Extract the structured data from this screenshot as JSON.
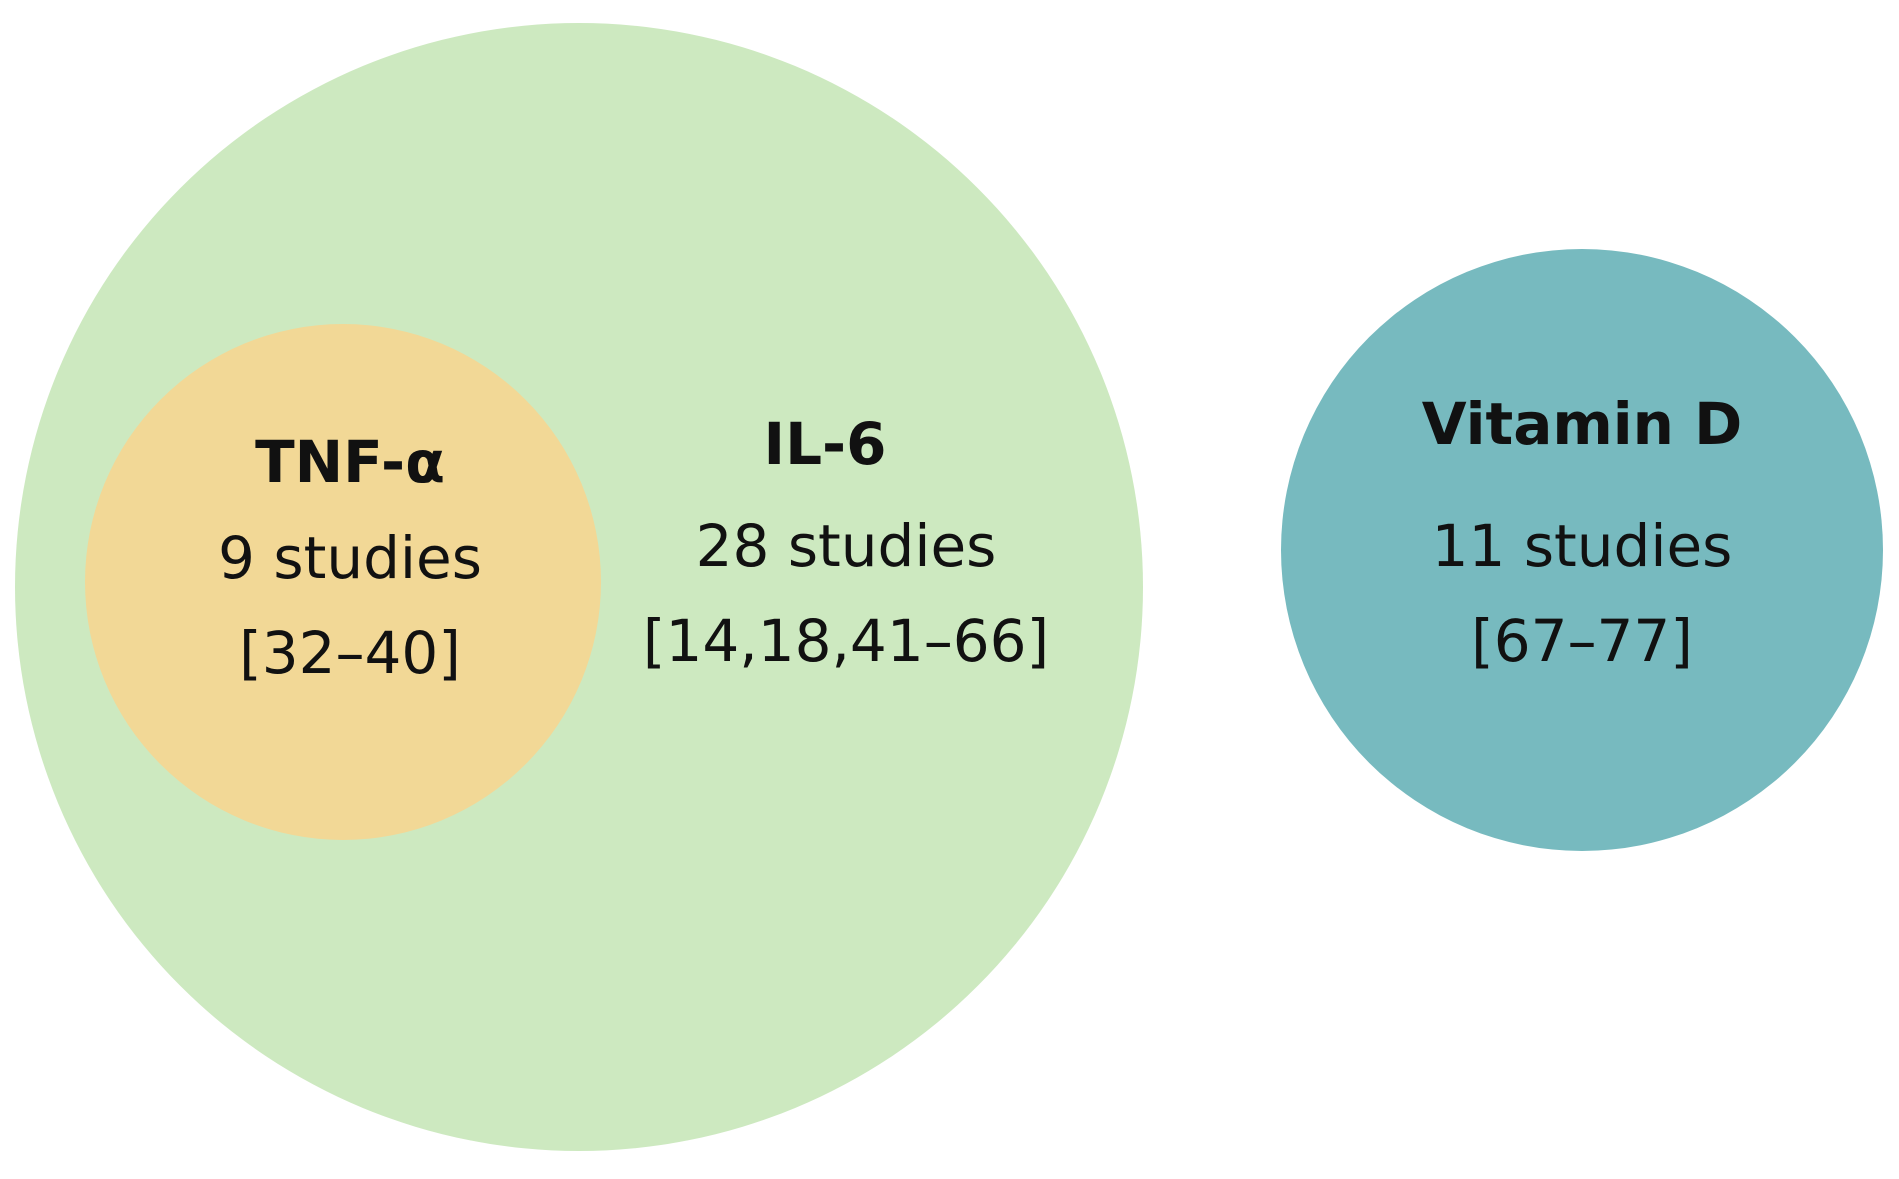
{
  "nodes": [
    {
      "label": "TNF-α",
      "studies": "9 studies",
      "refs": "[32–40]"
    },
    {
      "label": "IL-6",
      "studies": "28 studies",
      "refs": "[14,18,41–66]"
    },
    {
      "label": "Vitamin D",
      "studies": "11 studies",
      "refs": "[67–77]"
    }
  ]
}
